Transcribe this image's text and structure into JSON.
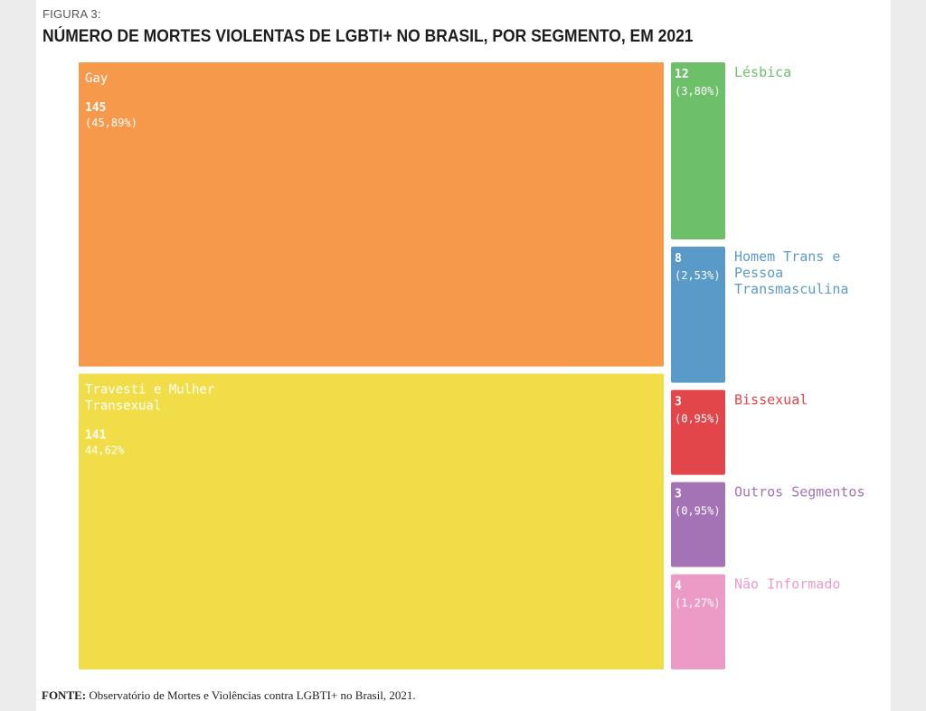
{
  "figure_label": "FIGURA 3:",
  "title": "NÚMERO DE MORTES VIOLENTAS DE LGBTI+ NO BRASIL, POR SEGMENTO, EM 2021",
  "source": {
    "prefix": "FONTE:",
    "text": "Observatório de Mortes e Violências contra LGBTI+ no Brasil, 2021."
  },
  "chart_data": {
    "type": "treemap",
    "title": "NÚMERO DE MORTES VIOLENTAS DE LGBTI+ NO BRASIL, POR SEGMENTO, EM 2021",
    "segments": [
      {
        "name": "Gay",
        "value": 145,
        "pct_label": "(45,89%)",
        "color": "#f7994b",
        "label_position": "inside"
      },
      {
        "name": "Travesti e Mulher Transexual",
        "value": 141,
        "pct_label": "44,62%",
        "color": "#f0dd48",
        "label_position": "inside"
      },
      {
        "name": "Lésbica",
        "value": 12,
        "pct_label": "(3,80%)",
        "color": "#6ebf6a",
        "label_position": "outside"
      },
      {
        "name": "Homem Trans e Pessoa Transmasculina",
        "value": 8,
        "pct_label": "(2,53%)",
        "color": "#5a9ac9",
        "label_position": "outside"
      },
      {
        "name": "Bissexual",
        "value": 3,
        "pct_label": "(0,95%)",
        "color": "#e2454a",
        "label_position": "outside"
      },
      {
        "name": "Outros Segmentos",
        "value": 3,
        "pct_label": "(0,95%)",
        "color": "#a373b6",
        "label_position": "outside"
      },
      {
        "name": "Não Informado",
        "value": 4,
        "pct_label": "(1,27%)",
        "color": "#ec9bc6",
        "label_position": "outside"
      }
    ]
  }
}
